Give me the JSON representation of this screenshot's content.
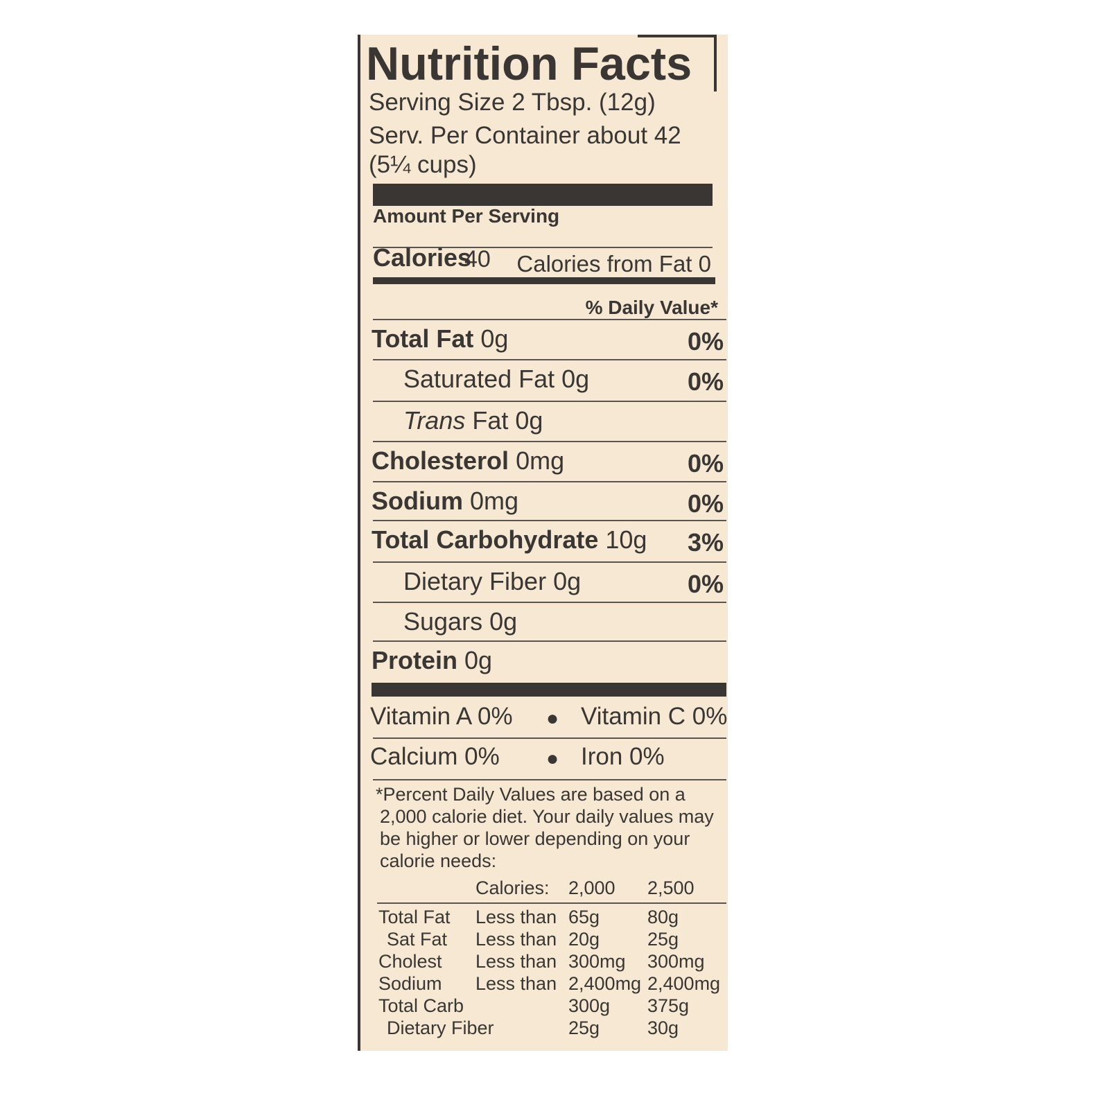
{
  "title": "Nutrition Facts",
  "serving_size": "Serving Size 2 Tbsp. (12g)",
  "servings_per_container": "Serv. Per Container about 42",
  "servings_cups": "(5¼ cups)",
  "amount_per_serving": "Amount Per Serving",
  "calories": {
    "label": "Calories",
    "value": "40",
    "from_fat": "Calories from Fat 0"
  },
  "daily_value_header": "% Daily Value*",
  "nutrients": [
    {
      "label": "Total Fat",
      "amount": "0g",
      "dv": "0%",
      "bold": true,
      "indent": false
    },
    {
      "label": "Saturated Fat",
      "amount": "0g",
      "dv": "0%",
      "bold": false,
      "indent": true
    },
    {
      "label": "Trans",
      "label_suffix": "Fat",
      "amount": "0g",
      "dv": "",
      "bold": false,
      "indent": true
    },
    {
      "label": "Cholesterol",
      "amount": "0mg",
      "dv": "0%",
      "bold": true,
      "indent": false
    },
    {
      "label": "Sodium",
      "amount": "0mg",
      "dv": "0%",
      "bold": true,
      "indent": false
    },
    {
      "label": "Total Carbohydrate",
      "amount": "10g",
      "dv": "3%",
      "bold": true,
      "indent": false
    },
    {
      "label": "Dietary Fiber",
      "amount": "0g",
      "dv": "0%",
      "bold": false,
      "indent": true
    },
    {
      "label": "Sugars",
      "amount": "0g",
      "dv": "",
      "bold": false,
      "indent": true
    },
    {
      "label": "Protein",
      "amount": "0g",
      "dv": "",
      "bold": true,
      "indent": false
    }
  ],
  "vitamins": [
    {
      "left": "Vitamin A 0%",
      "right": "Vitamin C 0%"
    },
    {
      "left": "Calcium 0%",
      "right": "Iron 0%"
    }
  ],
  "footnote": [
    "*Percent Daily Values are based on a",
    "2,000 calorie diet. Your daily values may",
    "be higher or lower depending on your",
    "calorie needs:"
  ],
  "dv_table": {
    "header": [
      "",
      "Calories:",
      "2,000",
      "2,500"
    ],
    "rows": [
      [
        "Total Fat",
        "Less than",
        "65g",
        "80g"
      ],
      [
        " Sat Fat",
        "Less than",
        "20g",
        "25g"
      ],
      [
        "Cholest",
        "Less than",
        "300mg",
        "300mg"
      ],
      [
        "Sodium",
        "Less than",
        "2,400mg",
        "2,400mg"
      ],
      [
        "Total Carb",
        "",
        "300g",
        "375g"
      ],
      [
        " Dietary Fiber",
        "",
        "25g",
        "30g"
      ]
    ]
  },
  "colors": {
    "background": "#f6e8d2",
    "ink": "#3a3633"
  }
}
